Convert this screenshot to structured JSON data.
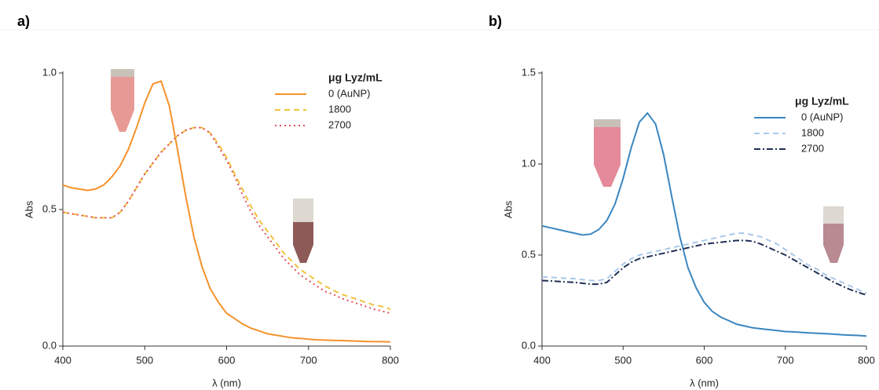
{
  "chart_data": [
    {
      "type": "line",
      "label": "a)",
      "ylabel": "Abs",
      "xlabel": "λ (nm)",
      "legend_title": "μg Lyz/mL",
      "xlim": [
        400,
        800
      ],
      "ylim": [
        0,
        1.0
      ],
      "xticks": [
        400,
        500,
        600,
        700,
        800
      ],
      "yticks": [
        {
          "value": 0,
          "label": "0.0"
        },
        {
          "value": 0.5,
          "label": "0.5"
        },
        {
          "value": 1.0,
          "label": "1.0"
        }
      ],
      "x": [
        400,
        410,
        420,
        430,
        440,
        450,
        460,
        470,
        480,
        490,
        500,
        510,
        520,
        530,
        540,
        550,
        560,
        570,
        580,
        590,
        600,
        610,
        620,
        630,
        640,
        650,
        660,
        670,
        680,
        690,
        700,
        710,
        720,
        730,
        740,
        750,
        760,
        770,
        780,
        790,
        800
      ],
      "series": [
        {
          "name": "0 (AuNP)",
          "color": "#f5922a",
          "dash": "solid",
          "values": [
            0.59,
            0.58,
            0.575,
            0.57,
            0.575,
            0.59,
            0.62,
            0.66,
            0.72,
            0.8,
            0.89,
            0.96,
            0.97,
            0.88,
            0.72,
            0.55,
            0.4,
            0.29,
            0.21,
            0.16,
            0.12,
            0.1,
            0.08,
            0.065,
            0.055,
            0.045,
            0.04,
            0.035,
            0.03,
            0.028,
            0.025,
            0.023,
            0.022,
            0.021,
            0.02,
            0.019,
            0.018,
            0.017,
            0.016,
            0.016,
            0.015
          ]
        },
        {
          "name": "1800",
          "color": "#f2c23a",
          "dash": "dashed",
          "values": [
            0.49,
            0.485,
            0.48,
            0.475,
            0.47,
            0.47,
            0.47,
            0.49,
            0.53,
            0.58,
            0.63,
            0.67,
            0.71,
            0.74,
            0.77,
            0.79,
            0.8,
            0.8,
            0.78,
            0.74,
            0.69,
            0.63,
            0.57,
            0.51,
            0.46,
            0.42,
            0.38,
            0.34,
            0.31,
            0.28,
            0.26,
            0.24,
            0.22,
            0.205,
            0.19,
            0.18,
            0.17,
            0.16,
            0.15,
            0.145,
            0.135
          ]
        },
        {
          "name": "2700",
          "color": "#e0505a",
          "dash": "dotted",
          "values": [
            0.49,
            0.485,
            0.48,
            0.475,
            0.47,
            0.47,
            0.47,
            0.49,
            0.53,
            0.58,
            0.63,
            0.67,
            0.71,
            0.74,
            0.77,
            0.79,
            0.8,
            0.8,
            0.78,
            0.73,
            0.68,
            0.62,
            0.55,
            0.49,
            0.44,
            0.4,
            0.36,
            0.32,
            0.29,
            0.26,
            0.24,
            0.22,
            0.2,
            0.19,
            0.175,
            0.165,
            0.155,
            0.145,
            0.135,
            0.128,
            0.12
          ]
        }
      ]
    },
    {
      "type": "line",
      "label": "b)",
      "ylabel": "Abs",
      "xlabel": "λ (nm)",
      "legend_title": "μg Lyz/mL",
      "xlim": [
        400,
        800
      ],
      "ylim": [
        0,
        1.5
      ],
      "xticks": [
        400,
        500,
        600,
        700,
        800
      ],
      "yticks": [
        {
          "value": 0,
          "label": "0.0"
        },
        {
          "value": 0.5,
          "label": "0.5"
        },
        {
          "value": 1.0,
          "label": "1.0"
        },
        {
          "value": 1.5,
          "label": "1.5"
        }
      ],
      "x": [
        400,
        410,
        420,
        430,
        440,
        450,
        460,
        470,
        480,
        490,
        500,
        510,
        520,
        530,
        540,
        550,
        560,
        570,
        580,
        590,
        600,
        610,
        620,
        630,
        640,
        650,
        660,
        670,
        680,
        690,
        700,
        710,
        720,
        730,
        740,
        750,
        760,
        770,
        780,
        790,
        800
      ],
      "series": [
        {
          "name": "0 (AuNP)",
          "color": "#3a86c0",
          "dash": "solid",
          "values": [
            0.66,
            0.65,
            0.64,
            0.63,
            0.62,
            0.61,
            0.615,
            0.64,
            0.69,
            0.78,
            0.92,
            1.09,
            1.23,
            1.28,
            1.22,
            1.05,
            0.82,
            0.6,
            0.43,
            0.32,
            0.24,
            0.19,
            0.16,
            0.14,
            0.12,
            0.11,
            0.1,
            0.095,
            0.09,
            0.085,
            0.08,
            0.078,
            0.075,
            0.072,
            0.07,
            0.068,
            0.065,
            0.062,
            0.06,
            0.058,
            0.055
          ]
        },
        {
          "name": "1800",
          "color": "#a9c8ea",
          "dash": "dashed",
          "values": [
            0.38,
            0.378,
            0.375,
            0.372,
            0.37,
            0.365,
            0.36,
            0.36,
            0.37,
            0.41,
            0.45,
            0.48,
            0.5,
            0.51,
            0.52,
            0.53,
            0.54,
            0.55,
            0.56,
            0.57,
            0.58,
            0.59,
            0.6,
            0.61,
            0.62,
            0.62,
            0.61,
            0.6,
            0.58,
            0.56,
            0.53,
            0.5,
            0.47,
            0.44,
            0.42,
            0.39,
            0.37,
            0.35,
            0.33,
            0.31,
            0.29
          ]
        },
        {
          "name": "2700",
          "color": "#1f2f57",
          "dash": "dashdot",
          "values": [
            0.36,
            0.358,
            0.355,
            0.352,
            0.35,
            0.345,
            0.34,
            0.34,
            0.35,
            0.39,
            0.43,
            0.46,
            0.48,
            0.49,
            0.5,
            0.51,
            0.52,
            0.53,
            0.54,
            0.55,
            0.56,
            0.565,
            0.57,
            0.575,
            0.58,
            0.58,
            0.575,
            0.56,
            0.54,
            0.52,
            0.5,
            0.475,
            0.45,
            0.425,
            0.4,
            0.375,
            0.35,
            0.33,
            0.31,
            0.295,
            0.28
          ]
        }
      ]
    }
  ]
}
